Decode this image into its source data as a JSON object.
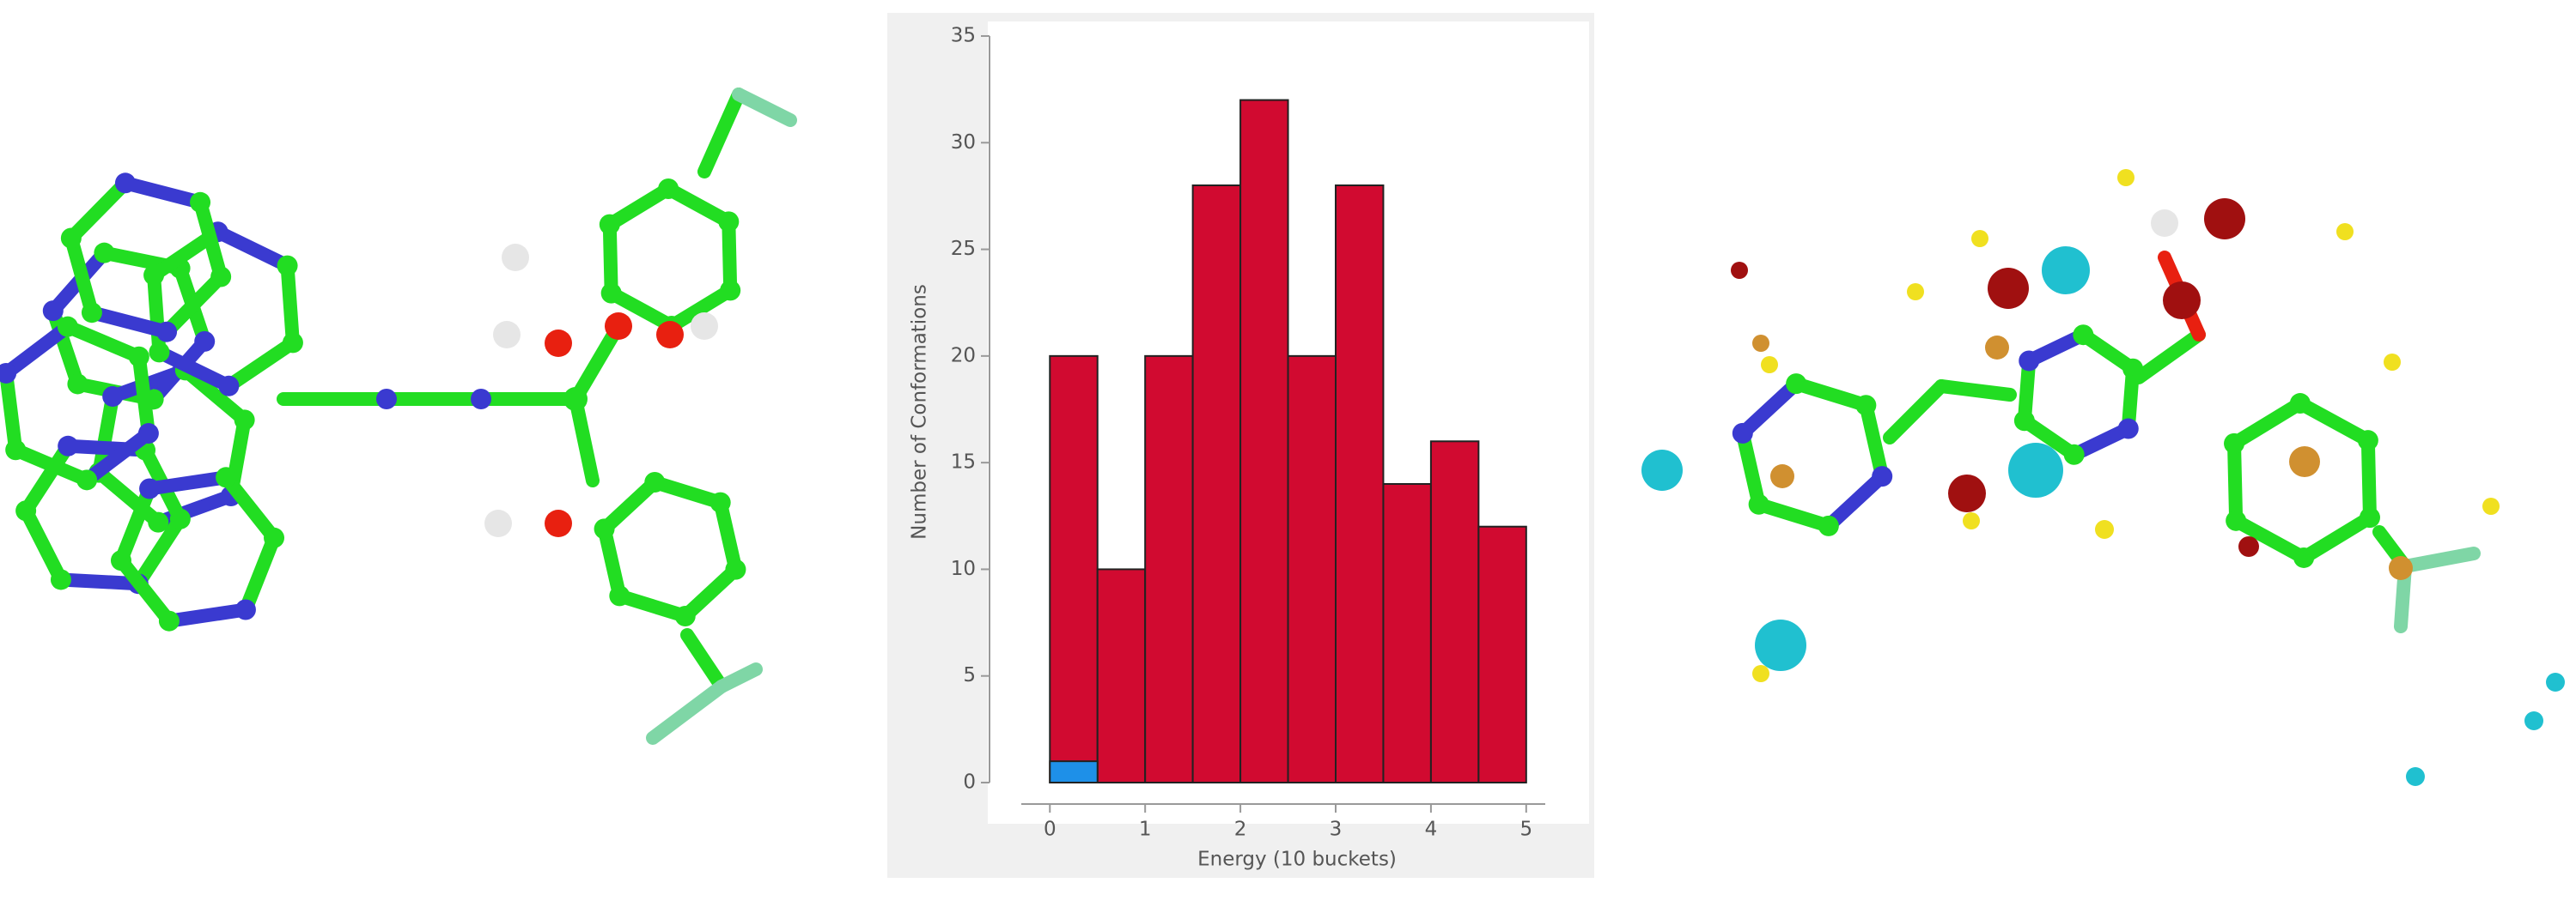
{
  "chart_data": {
    "type": "histogram",
    "x_label": "Energy (10 buckets)",
    "y_label": "Number of Conformations",
    "bins": [
      0,
      0.5,
      1,
      1.5,
      2,
      2.5,
      3,
      3.5,
      4,
      4.5,
      5
    ],
    "series": [
      {
        "color": "#d10a30",
        "values": [
          20,
          10,
          20,
          28,
          32,
          20,
          28,
          14,
          16,
          12
        ]
      },
      {
        "color": "#1e90e8",
        "values": [
          1,
          0,
          0,
          0,
          0,
          0,
          0,
          0,
          0,
          0
        ]
      }
    ],
    "xlim": [
      -0.3,
      5.2
    ],
    "xticks": [
      0,
      1,
      2,
      3,
      4,
      5
    ],
    "ylim": [
      0,
      35
    ],
    "yticks": [
      0,
      5,
      10,
      15,
      20,
      25,
      30,
      35
    ]
  }
}
